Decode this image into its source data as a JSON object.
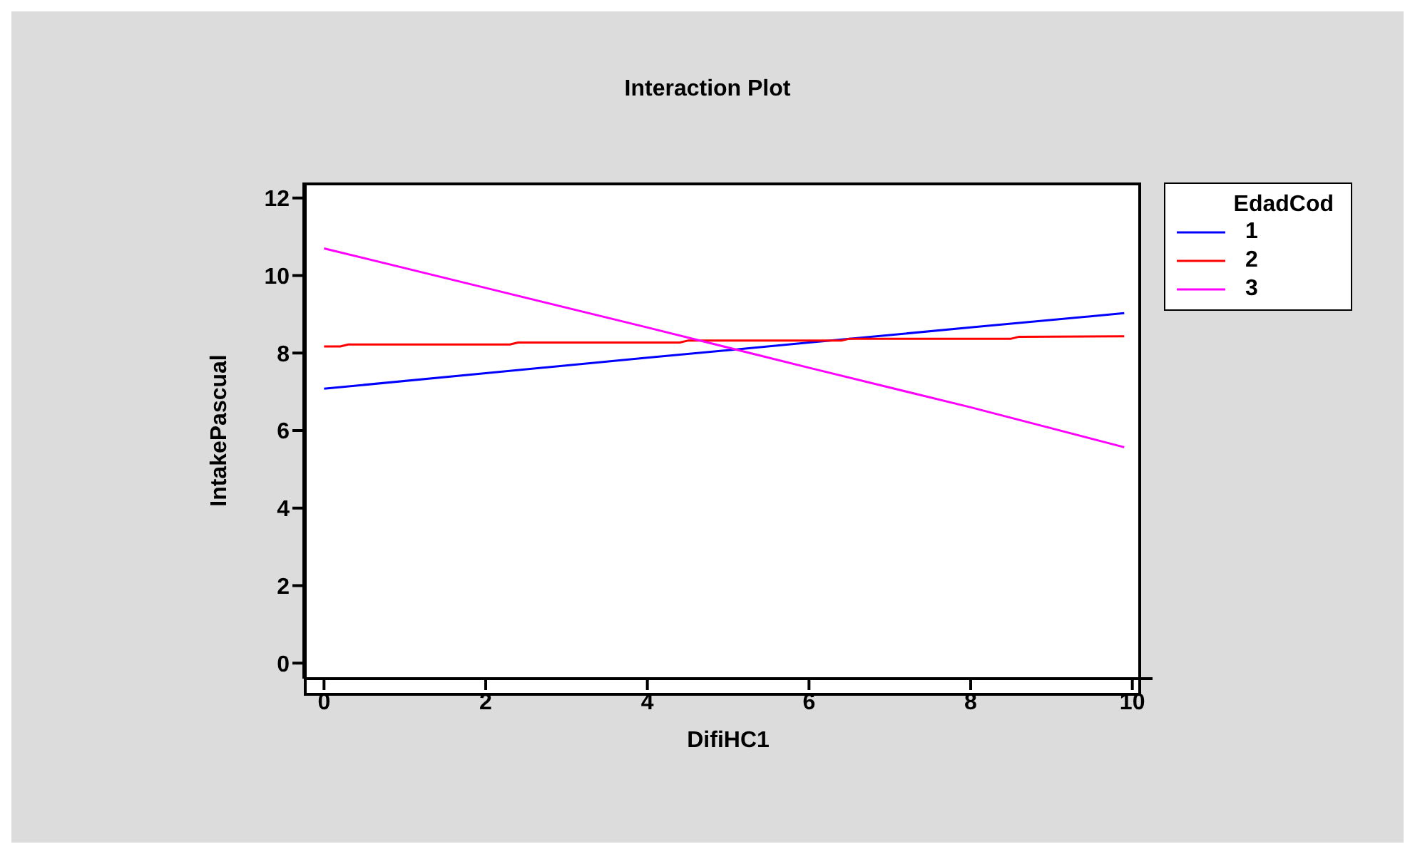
{
  "chart_data": {
    "type": "line",
    "title": "Interaction Plot",
    "xlabel": "DifiHC1",
    "ylabel": "IntakePascual",
    "legend_title": "EdadCod",
    "xlim": [
      -0.25,
      10.25
    ],
    "xticks": [
      0,
      2,
      4,
      6,
      8,
      10
    ],
    "ylim": [
      -0.4,
      12.4
    ],
    "yticks": [
      0,
      2,
      4,
      6,
      8,
      10,
      12
    ],
    "grid": false,
    "legend": "top right",
    "marker": "none",
    "line_style": "solid",
    "series": [
      {
        "name": "1",
        "color": "#0000ff",
        "x": [
          0,
          2,
          4,
          6,
          8,
          9.9
        ],
        "values": [
          7.08,
          7.48,
          7.88,
          8.27,
          8.66,
          9.03
        ]
      },
      {
        "name": "2",
        "color": "#ff0000",
        "x": [
          0,
          0.2,
          0.3,
          2.3,
          2.4,
          4.4,
          4.5,
          6.4,
          6.5,
          8.5,
          8.6,
          9.9
        ],
        "values": [
          8.17,
          8.17,
          8.22,
          8.22,
          8.27,
          8.27,
          8.32,
          8.32,
          8.37,
          8.37,
          8.42,
          8.43
        ]
      },
      {
        "name": "3",
        "color": "#ff00ff",
        "x": [
          0,
          2,
          4,
          6,
          8,
          9.9
        ],
        "values": [
          10.7,
          9.68,
          8.66,
          7.62,
          6.6,
          5.57
        ]
      }
    ]
  }
}
